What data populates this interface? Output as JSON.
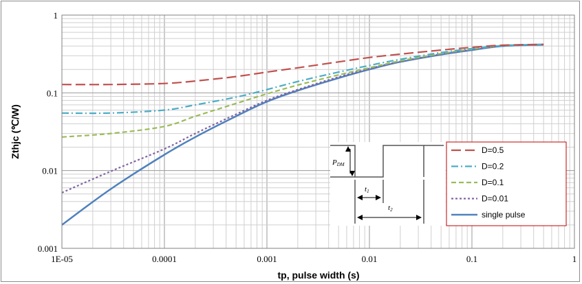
{
  "chart_data": {
    "type": "line",
    "x_scale": "log",
    "y_scale": "log",
    "xlabel": "tp, pulse width  (s)",
    "ylabel": "Zthjc  (℃/W)",
    "xlim": [
      1e-05,
      1
    ],
    "ylim": [
      0.001,
      1
    ],
    "x_tick_labels": [
      "1E-05",
      "0.0001",
      "0.001",
      "0.01",
      "0.1",
      "1"
    ],
    "y_tick_labels": [
      "0.001",
      "0.01",
      "0.1",
      "1"
    ],
    "grid": true,
    "legend_position": "bottom-right",
    "series": [
      {
        "name": "D=0.5",
        "color": "#c0504d",
        "dash": "long-dash",
        "points": [
          [
            1e-05,
            0.128
          ],
          [
            3e-05,
            0.128
          ],
          [
            0.0001,
            0.132
          ],
          [
            0.0002,
            0.142
          ],
          [
            0.0005,
            0.162
          ],
          [
            0.001,
            0.185
          ],
          [
            0.002,
            0.21
          ],
          [
            0.005,
            0.25
          ],
          [
            0.01,
            0.285
          ],
          [
            0.02,
            0.315
          ],
          [
            0.05,
            0.355
          ],
          [
            0.1,
            0.385
          ],
          [
            0.2,
            0.41
          ],
          [
            0.5,
            0.42
          ]
        ]
      },
      {
        "name": "D=0.2",
        "color": "#4bacc6",
        "dash": "dash-dot",
        "points": [
          [
            1e-05,
            0.055
          ],
          [
            3e-05,
            0.055
          ],
          [
            0.0001,
            0.06
          ],
          [
            0.0002,
            0.07
          ],
          [
            0.0005,
            0.088
          ],
          [
            0.001,
            0.11
          ],
          [
            0.002,
            0.14
          ],
          [
            0.005,
            0.185
          ],
          [
            0.01,
            0.225
          ],
          [
            0.02,
            0.27
          ],
          [
            0.05,
            0.33
          ],
          [
            0.1,
            0.37
          ],
          [
            0.2,
            0.405
          ],
          [
            0.5,
            0.42
          ]
        ]
      },
      {
        "name": "D=0.1",
        "color": "#9bbb59",
        "dash": "dash",
        "points": [
          [
            1e-05,
            0.027
          ],
          [
            3e-05,
            0.03
          ],
          [
            0.0001,
            0.037
          ],
          [
            0.0002,
            0.05
          ],
          [
            0.0005,
            0.073
          ],
          [
            0.001,
            0.097
          ],
          [
            0.002,
            0.126
          ],
          [
            0.005,
            0.17
          ],
          [
            0.01,
            0.21
          ],
          [
            0.02,
            0.258
          ],
          [
            0.05,
            0.32
          ],
          [
            0.1,
            0.365
          ],
          [
            0.2,
            0.405
          ],
          [
            0.5,
            0.42
          ]
        ]
      },
      {
        "name": "D=0.01",
        "color": "#8064a2",
        "dash": "dot",
        "points": [
          [
            1e-05,
            0.0052
          ],
          [
            3e-05,
            0.0098
          ],
          [
            0.0001,
            0.019
          ],
          [
            0.0002,
            0.03
          ],
          [
            0.0005,
            0.053
          ],
          [
            0.001,
            0.08
          ],
          [
            0.002,
            0.11
          ],
          [
            0.005,
            0.16
          ],
          [
            0.01,
            0.205
          ],
          [
            0.02,
            0.253
          ],
          [
            0.05,
            0.315
          ],
          [
            0.1,
            0.36
          ],
          [
            0.2,
            0.405
          ],
          [
            0.5,
            0.42
          ]
        ]
      },
      {
        "name": "single pulse",
        "color": "#4f81bd",
        "dash": "solid",
        "points": [
          [
            1e-05,
            0.002
          ],
          [
            3e-05,
            0.0058
          ],
          [
            0.0001,
            0.016
          ],
          [
            0.0002,
            0.027
          ],
          [
            0.0005,
            0.05
          ],
          [
            0.001,
            0.077
          ],
          [
            0.002,
            0.107
          ],
          [
            0.005,
            0.155
          ],
          [
            0.01,
            0.2
          ],
          [
            0.02,
            0.25
          ],
          [
            0.05,
            0.31
          ],
          [
            0.1,
            0.355
          ],
          [
            0.2,
            0.4
          ],
          [
            0.5,
            0.415
          ]
        ]
      }
    ],
    "inset": {
      "power_label": "P",
      "power_subscript": "DM",
      "t1_label": "t",
      "t1_subscript": "1",
      "t2_label": "t",
      "t2_subscript": "2"
    }
  }
}
